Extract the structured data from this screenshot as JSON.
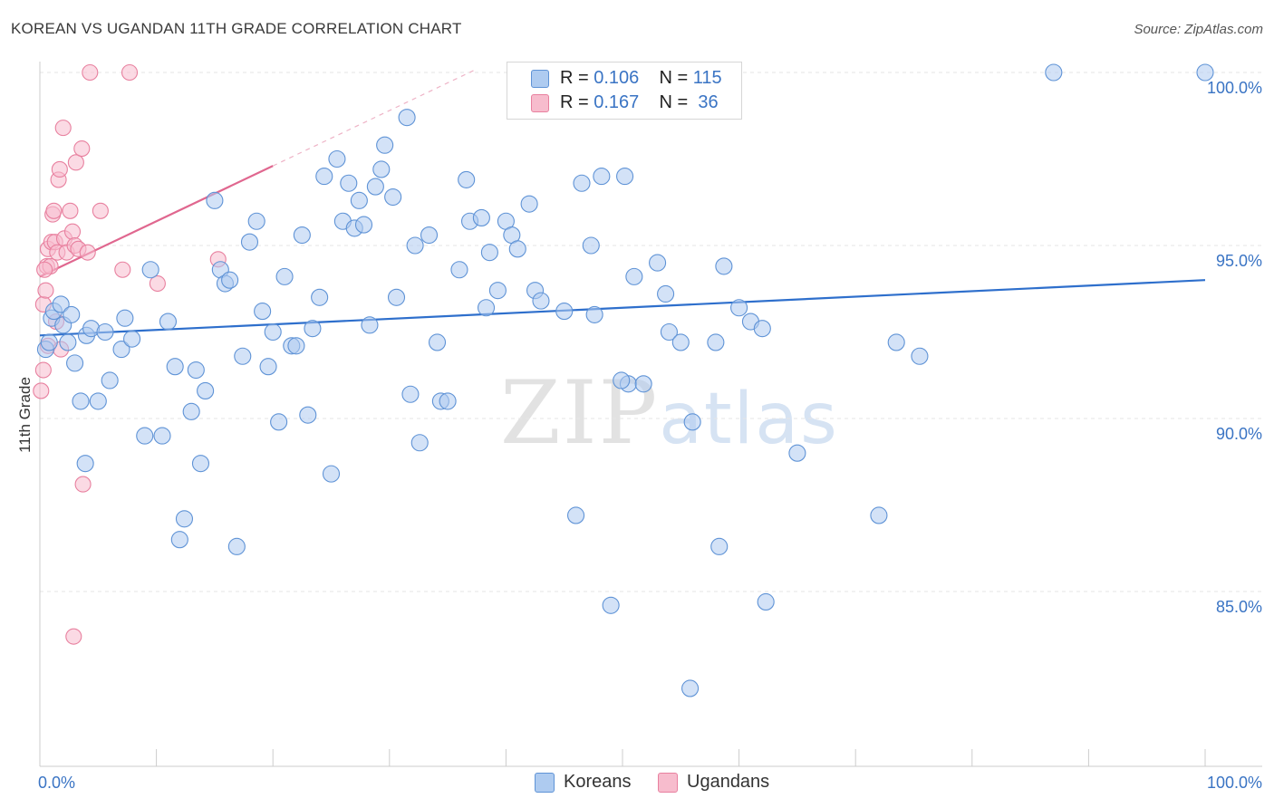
{
  "title": "KOREAN VS UGANDAN 11TH GRADE CORRELATION CHART",
  "source": "Source: ZipAtlas.com",
  "watermark": {
    "zip": "ZIP",
    "atlas": "atlas"
  },
  "legend": {
    "korean": {
      "r_label": "R = ",
      "r_value": "0.106",
      "n_label": "N = ",
      "n_value": "115"
    },
    "ugandan": {
      "r_label": "R = ",
      "r_value": "0.167",
      "n_label": "N = ",
      "n_value": " 36"
    }
  },
  "bottom_legend": {
    "korean": "Koreans",
    "ugandan": "Ugandans"
  },
  "colors": {
    "korean_fill": "#aecbf0",
    "korean_stroke": "#5f93d6",
    "korean_line": "#2e6fcc",
    "ugandan_fill": "#f7bccd",
    "ugandan_stroke": "#e8809f",
    "ugandan_line": "#e0678f"
  },
  "chart_data": {
    "type": "scatter",
    "title": "KOREAN VS UGANDAN 11TH GRADE CORRELATION CHART",
    "xlabel": "",
    "ylabel": "11th Grade",
    "xlim": [
      0,
      100
    ],
    "ylim": [
      80.0,
      100.8
    ],
    "x_tick_labels": [
      "0.0%",
      "100.0%"
    ],
    "y_ticks": [
      85.0,
      90.0,
      95.0,
      100.0
    ],
    "y_tick_labels": [
      "85.0%",
      "90.0%",
      "95.0%",
      "100.0%"
    ],
    "series": [
      {
        "name": "Koreans",
        "trend": {
          "x": [
            0,
            100
          ],
          "y": [
            92.4,
            94.0
          ]
        },
        "points": [
          [
            0.5,
            92.0
          ],
          [
            0.8,
            92.2
          ],
          [
            1.0,
            92.9
          ],
          [
            1.2,
            93.1
          ],
          [
            1.8,
            93.3
          ],
          [
            2.0,
            92.7
          ],
          [
            2.4,
            92.2
          ],
          [
            2.7,
            93.0
          ],
          [
            3.0,
            91.6
          ],
          [
            4.0,
            92.4
          ],
          [
            3.5,
            90.5
          ],
          [
            4.4,
            92.6
          ],
          [
            3.9,
            88.7
          ],
          [
            5.0,
            90.5
          ],
          [
            5.6,
            92.5
          ],
          [
            6.0,
            91.1
          ],
          [
            7.0,
            92.0
          ],
          [
            7.3,
            92.9
          ],
          [
            7.9,
            92.3
          ],
          [
            9.0,
            89.5
          ],
          [
            9.5,
            94.3
          ],
          [
            10.5,
            89.5
          ],
          [
            11.0,
            92.8
          ],
          [
            11.6,
            91.5
          ],
          [
            12.4,
            87.1
          ],
          [
            12.0,
            86.5
          ],
          [
            13.0,
            90.2
          ],
          [
            13.4,
            91.4
          ],
          [
            13.8,
            88.7
          ],
          [
            14.2,
            90.8
          ],
          [
            15.0,
            96.3
          ],
          [
            15.5,
            94.3
          ],
          [
            15.9,
            93.9
          ],
          [
            16.3,
            94.0
          ],
          [
            16.9,
            86.3
          ],
          [
            17.4,
            91.8
          ],
          [
            18.0,
            95.1
          ],
          [
            18.6,
            95.7
          ],
          [
            19.1,
            93.1
          ],
          [
            19.6,
            91.5
          ],
          [
            20.0,
            92.5
          ],
          [
            20.5,
            89.9
          ],
          [
            21.0,
            94.1
          ],
          [
            21.6,
            92.1
          ],
          [
            22.0,
            92.1
          ],
          [
            22.5,
            95.3
          ],
          [
            23.0,
            90.1
          ],
          [
            23.4,
            92.6
          ],
          [
            24.0,
            93.5
          ],
          [
            24.4,
            97.0
          ],
          [
            25.0,
            88.4
          ],
          [
            25.5,
            97.5
          ],
          [
            26.0,
            95.7
          ],
          [
            26.5,
            96.8
          ],
          [
            27.0,
            95.5
          ],
          [
            27.4,
            96.3
          ],
          [
            27.8,
            95.6
          ],
          [
            28.3,
            92.7
          ],
          [
            28.8,
            96.7
          ],
          [
            29.3,
            97.2
          ],
          [
            29.6,
            97.9
          ],
          [
            30.3,
            96.4
          ],
          [
            30.6,
            93.5
          ],
          [
            31.5,
            98.7
          ],
          [
            31.8,
            90.7
          ],
          [
            32.2,
            95.0
          ],
          [
            32.6,
            89.3
          ],
          [
            33.4,
            95.3
          ],
          [
            34.1,
            92.2
          ],
          [
            34.4,
            90.5
          ],
          [
            35.0,
            90.5
          ],
          [
            36.0,
            94.3
          ],
          [
            36.6,
            96.9
          ],
          [
            36.9,
            95.7
          ],
          [
            37.9,
            95.8
          ],
          [
            38.3,
            93.2
          ],
          [
            38.6,
            94.8
          ],
          [
            39.3,
            93.7
          ],
          [
            40.0,
            95.7
          ],
          [
            40.5,
            95.3
          ],
          [
            41.0,
            94.9
          ],
          [
            42.0,
            96.2
          ],
          [
            42.5,
            93.7
          ],
          [
            43.0,
            93.4
          ],
          [
            45.0,
            93.1
          ],
          [
            46.0,
            87.2
          ],
          [
            46.5,
            96.8
          ],
          [
            47.3,
            95.0
          ],
          [
            47.6,
            93.0
          ],
          [
            48.2,
            97.0
          ],
          [
            49.0,
            84.6
          ],
          [
            50.2,
            97.0
          ],
          [
            50.5,
            91.0
          ],
          [
            49.9,
            91.1
          ],
          [
            51.0,
            94.1
          ],
          [
            51.8,
            91.0
          ],
          [
            53.0,
            94.5
          ],
          [
            53.7,
            93.6
          ],
          [
            54.0,
            92.5
          ],
          [
            55.0,
            92.2
          ],
          [
            55.8,
            82.2
          ],
          [
            56.0,
            89.9
          ],
          [
            58.0,
            92.2
          ],
          [
            58.3,
            86.3
          ],
          [
            58.7,
            94.4
          ],
          [
            60.0,
            93.2
          ],
          [
            61.0,
            92.8
          ],
          [
            62.0,
            92.6
          ],
          [
            62.3,
            84.7
          ],
          [
            65.0,
            89.0
          ],
          [
            72.0,
            87.2
          ],
          [
            73.5,
            92.2
          ],
          [
            75.5,
            91.8
          ],
          [
            87.0,
            100.0
          ],
          [
            100.0,
            100.0
          ]
        ]
      },
      {
        "name": "Ugandans",
        "trend": {
          "x": [
            0,
            20
          ],
          "y": [
            94.1,
            97.3
          ]
        },
        "trend_extension": {
          "x": [
            20,
            37.5
          ],
          "y": [
            97.3,
            100.1
          ]
        },
        "points": [
          [
            0.1,
            90.8
          ],
          [
            0.3,
            91.4
          ],
          [
            0.3,
            93.3
          ],
          [
            0.5,
            93.7
          ],
          [
            0.6,
            94.4
          ],
          [
            0.7,
            94.9
          ],
          [
            0.7,
            92.1
          ],
          [
            0.9,
            94.4
          ],
          [
            1.0,
            95.1
          ],
          [
            1.1,
            95.9
          ],
          [
            1.2,
            96.0
          ],
          [
            1.3,
            95.1
          ],
          [
            1.4,
            92.8
          ],
          [
            1.5,
            94.8
          ],
          [
            1.6,
            96.9
          ],
          [
            1.7,
            97.2
          ],
          [
            1.8,
            92.0
          ],
          [
            2.0,
            98.4
          ],
          [
            2.1,
            95.2
          ],
          [
            2.3,
            94.8
          ],
          [
            2.6,
            96.0
          ],
          [
            2.8,
            95.4
          ],
          [
            3.0,
            95.0
          ],
          [
            3.1,
            97.4
          ],
          [
            3.3,
            94.9
          ],
          [
            3.6,
            97.8
          ],
          [
            3.7,
            88.1
          ],
          [
            4.1,
            94.8
          ],
          [
            4.3,
            100.0
          ],
          [
            2.9,
            83.7
          ],
          [
            5.2,
            96.0
          ],
          [
            7.1,
            94.3
          ],
          [
            7.7,
            100.0
          ],
          [
            10.1,
            93.9
          ],
          [
            15.3,
            94.6
          ],
          [
            0.4,
            94.3
          ]
        ]
      }
    ]
  }
}
